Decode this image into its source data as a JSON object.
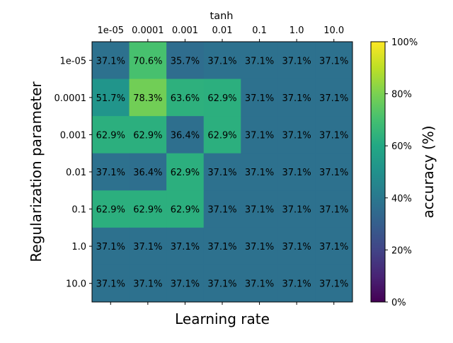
{
  "chart_data": {
    "type": "heatmap",
    "title": "tanh",
    "xlabel": "Learning rate",
    "ylabel": "Regularization parameter",
    "x_categories": [
      "1e-05",
      "0.0001",
      "0.001",
      "0.01",
      "0.1",
      "1.0",
      "10.0"
    ],
    "y_categories": [
      "1e-05",
      "0.0001",
      "0.001",
      "0.01",
      "0.1",
      "1.0",
      "10.0"
    ],
    "values": [
      [
        37.1,
        70.6,
        35.7,
        37.1,
        37.1,
        37.1,
        37.1
      ],
      [
        51.7,
        78.3,
        63.6,
        62.9,
        37.1,
        37.1,
        37.1
      ],
      [
        62.9,
        62.9,
        36.4,
        62.9,
        37.1,
        37.1,
        37.1
      ],
      [
        37.1,
        36.4,
        62.9,
        37.1,
        37.1,
        37.1,
        37.1
      ],
      [
        62.9,
        62.9,
        62.9,
        37.1,
        37.1,
        37.1,
        37.1
      ],
      [
        37.1,
        37.1,
        37.1,
        37.1,
        37.1,
        37.1,
        37.1
      ],
      [
        37.1,
        37.1,
        37.1,
        37.1,
        37.1,
        37.1,
        37.1
      ]
    ],
    "value_format": "%",
    "colorbar": {
      "label": "accuracy (%)",
      "range": [
        0,
        100
      ],
      "ticks": [
        "0%",
        "20%",
        "40%",
        "60%",
        "80%",
        "100%"
      ],
      "colormap": "viridis"
    },
    "x_axis_position": "top",
    "grid": false
  }
}
